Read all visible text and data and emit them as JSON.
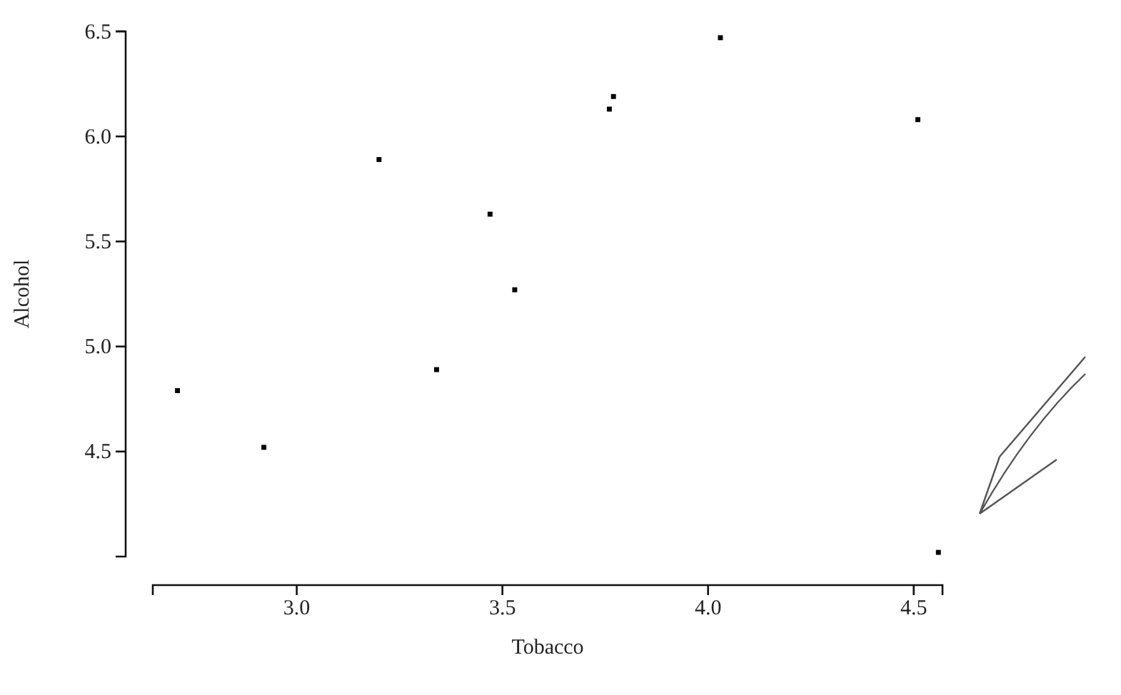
{
  "chart_data": {
    "type": "scatter",
    "xlabel": "Tobacco",
    "ylabel": "Alcohol",
    "x": [
      4.03,
      3.76,
      3.77,
      3.34,
      3.47,
      2.92,
      3.2,
      2.71,
      3.53,
      4.51,
      4.56
    ],
    "series": [
      {
        "color": "#000000",
        "values": [
          6.47,
          6.13,
          6.19,
          4.89,
          5.63,
          4.52,
          5.89,
          4.79,
          5.27,
          6.08,
          4.02
        ]
      }
    ],
    "xlim": [
      2.65,
      4.57
    ],
    "xticks": [
      {
        "value": 3.0,
        "label": "3.0"
      },
      {
        "value": 3.5,
        "label": "3.5"
      },
      {
        "value": 4.0,
        "label": "4.0"
      },
      {
        "value": 4.5,
        "label": "4.5"
      }
    ],
    "ylim": [
      4.0,
      6.5
    ],
    "yticks": [
      {
        "value": 4.5,
        "label": "4.5"
      },
      {
        "value": 5.0,
        "label": "5.0"
      },
      {
        "value": 5.5,
        "label": "5.5"
      },
      {
        "value": 6.0,
        "label": "6.0"
      },
      {
        "value": 6.5,
        "label": "6.5"
      }
    ],
    "grid": false,
    "marker": "square"
  }
}
